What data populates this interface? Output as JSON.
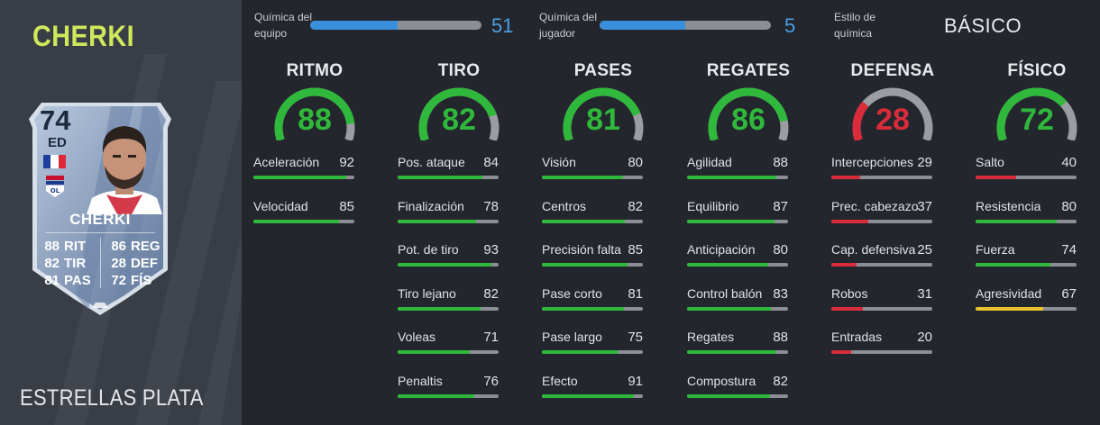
{
  "player": {
    "name": "CHERKI",
    "card_name": "CHERKI",
    "rating": "74",
    "position": "ED",
    "stats": [
      {
        "value": "88",
        "label": "RIT"
      },
      {
        "value": "86",
        "label": "REG"
      },
      {
        "value": "82",
        "label": "TIR"
      },
      {
        "value": "28",
        "label": "DEF"
      },
      {
        "value": "81",
        "label": "PAS"
      },
      {
        "value": "72",
        "label": "FÍS"
      }
    ]
  },
  "bottom_label": "ESTRELLAS PLATA",
  "chemistry": {
    "team_label": [
      "Química del",
      "equipo"
    ],
    "team_value": "51",
    "team_fraction": 0.51,
    "player_label": [
      "Química del",
      "jugador"
    ],
    "player_value": "5",
    "player_fraction": 0.5,
    "style_label": [
      "Estilo de",
      "química"
    ],
    "style_value": "BÁSICO"
  },
  "colors": {
    "green": "#2fb83b",
    "red": "#d92b3a",
    "yellow": "#e9c22c",
    "blue": "#3a8fdd",
    "gauge_grey": "#9a9ea3",
    "name_accent": "#cfe85c"
  },
  "categories": [
    {
      "title": "RITMO",
      "value": "88",
      "level": 88,
      "color": "green",
      "attributes": [
        {
          "name": "Aceleración",
          "value": "92",
          "color": "green"
        },
        {
          "name": "Velocidad",
          "value": "85",
          "color": "green"
        }
      ]
    },
    {
      "title": "TIRO",
      "value": "82",
      "level": 82,
      "color": "green",
      "attributes": [
        {
          "name": "Pos. ataque",
          "value": "84",
          "color": "green"
        },
        {
          "name": "Finalización",
          "value": "78",
          "color": "green"
        },
        {
          "name": "Pot. de tiro",
          "value": "93",
          "color": "green"
        },
        {
          "name": "Tiro lejano",
          "value": "82",
          "color": "green"
        },
        {
          "name": "Voleas",
          "value": "71",
          "color": "green"
        },
        {
          "name": "Penaltis",
          "value": "76",
          "color": "green"
        }
      ]
    },
    {
      "title": "PASES",
      "value": "81",
      "level": 81,
      "color": "green",
      "attributes": [
        {
          "name": "Visión",
          "value": "80",
          "color": "green"
        },
        {
          "name": "Centros",
          "value": "82",
          "color": "green"
        },
        {
          "name": "Precisión falta",
          "value": "85",
          "color": "green"
        },
        {
          "name": "Pase corto",
          "value": "81",
          "color": "green"
        },
        {
          "name": "Pase largo",
          "value": "75",
          "color": "green"
        },
        {
          "name": "Efecto",
          "value": "91",
          "color": "green"
        }
      ]
    },
    {
      "title": "REGATES",
      "value": "86",
      "level": 86,
      "color": "green",
      "attributes": [
        {
          "name": "Agilidad",
          "value": "88",
          "color": "green"
        },
        {
          "name": "Equilibrio",
          "value": "87",
          "color": "green"
        },
        {
          "name": "Anticipación",
          "value": "80",
          "color": "green"
        },
        {
          "name": "Control balón",
          "value": "83",
          "color": "green"
        },
        {
          "name": "Regates",
          "value": "88",
          "color": "green"
        },
        {
          "name": "Compostura",
          "value": "82",
          "color": "green"
        }
      ]
    },
    {
      "title": "DEFENSA",
      "value": "28",
      "level": 28,
      "color": "red",
      "attributes": [
        {
          "name": "Intercepciones",
          "value": "29",
          "color": "red"
        },
        {
          "name": "Prec. cabezazo",
          "value": "37",
          "color": "red"
        },
        {
          "name": "Cap. defensiva",
          "value": "25",
          "color": "red"
        },
        {
          "name": "Robos",
          "value": "31",
          "color": "red"
        },
        {
          "name": "Entradas",
          "value": "20",
          "color": "red"
        }
      ]
    },
    {
      "title": "FÍSICO",
      "value": "72",
      "level": 72,
      "color": "green",
      "attributes": [
        {
          "name": "Salto",
          "value": "40",
          "color": "red"
        },
        {
          "name": "Resistencia",
          "value": "80",
          "color": "green"
        },
        {
          "name": "Fuerza",
          "value": "74",
          "color": "green"
        },
        {
          "name": "Agresividad",
          "value": "67",
          "color": "yellow"
        }
      ]
    }
  ]
}
